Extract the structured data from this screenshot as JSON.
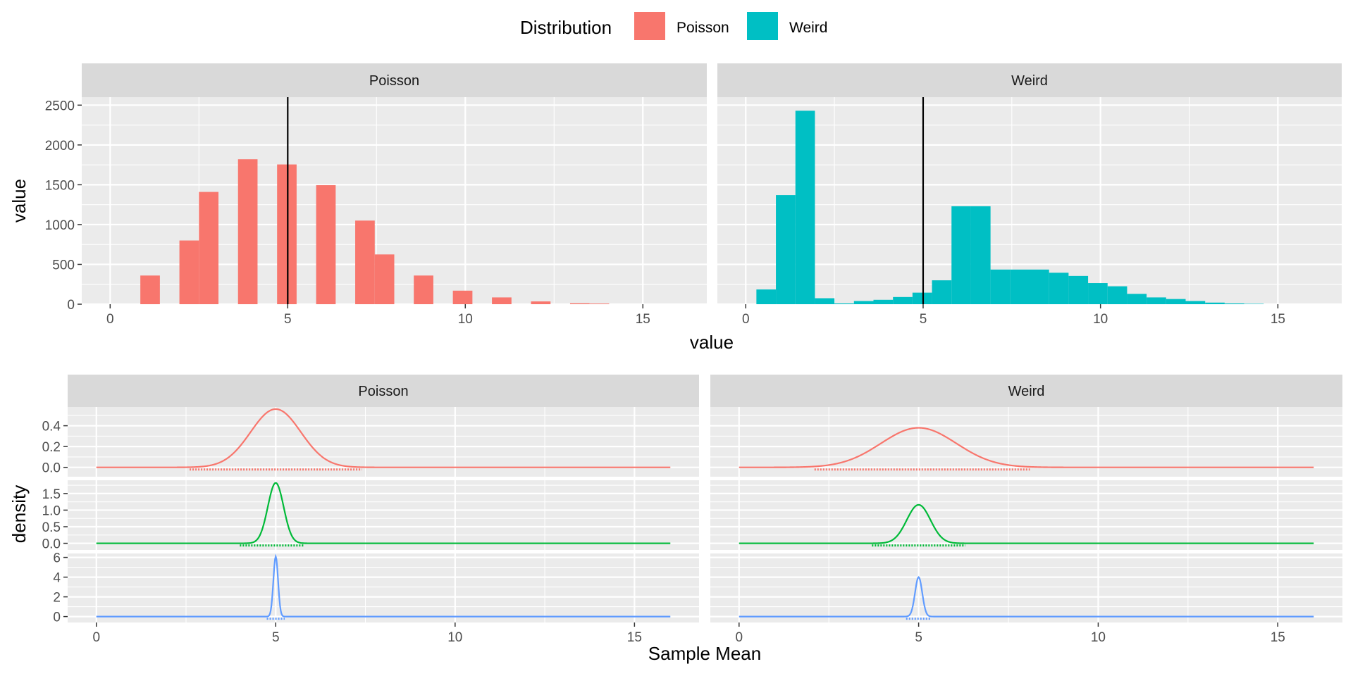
{
  "legend": {
    "title": "Distribution",
    "items": [
      {
        "label": "Poisson",
        "color": "#F8766D"
      },
      {
        "label": "Weird",
        "color": "#00BFC4"
      }
    ]
  },
  "colors": {
    "panel_bg": "#EBEBEB",
    "grid": "#FFFFFF",
    "strip_bg": "#D9D9D9",
    "mean_line": "#000000",
    "density_colors": [
      "#F8766D",
      "#00BA38",
      "#619CFF"
    ]
  },
  "chart_data": [
    {
      "type": "bar",
      "subtype": "histogram",
      "xlabel": "value",
      "ylabel": "value",
      "xlim": [
        -0.8,
        16.8
      ],
      "ylim": [
        0,
        2600
      ],
      "x_ticks": [
        0,
        5,
        10,
        15
      ],
      "y_ticks": [
        0,
        500,
        1000,
        1500,
        2000,
        2500
      ],
      "reference_line_x": 5,
      "grid": true,
      "legend_position": "top",
      "panels": [
        {
          "strip": "Poisson",
          "series": "Poisson",
          "bars": [
            {
              "x0": 0.85,
              "x1": 1.4,
              "value": 360
            },
            {
              "x0": 1.95,
              "x1": 2.5,
              "value": 800
            },
            {
              "x0": 2.5,
              "x1": 3.05,
              "value": 1410
            },
            {
              "x0": 3.6,
              "x1": 4.15,
              "value": 1820
            },
            {
              "x0": 4.7,
              "x1": 5.25,
              "value": 1755
            },
            {
              "x0": 5.8,
              "x1": 6.35,
              "value": 1495
            },
            {
              "x0": 6.9,
              "x1": 7.45,
              "value": 1050
            },
            {
              "x0": 7.45,
              "x1": 8.0,
              "value": 625
            },
            {
              "x0": 8.55,
              "x1": 9.1,
              "value": 360
            },
            {
              "x0": 9.65,
              "x1": 10.2,
              "value": 170
            },
            {
              "x0": 10.75,
              "x1": 11.3,
              "value": 85
            },
            {
              "x0": 11.85,
              "x1": 12.4,
              "value": 35
            },
            {
              "x0": 12.95,
              "x1": 13.5,
              "value": 12
            },
            {
              "x0": 13.5,
              "x1": 14.05,
              "value": 8
            }
          ]
        },
        {
          "strip": "Weird",
          "series": "Weird",
          "bars": [
            {
              "x0": 0.3,
              "x1": 0.85,
              "value": 185
            },
            {
              "x0": 0.85,
              "x1": 1.4,
              "value": 1370
            },
            {
              "x0": 1.4,
              "x1": 1.95,
              "value": 2430
            },
            {
              "x0": 1.95,
              "x1": 2.5,
              "value": 75
            },
            {
              "x0": 2.5,
              "x1": 3.05,
              "value": 10
            },
            {
              "x0": 3.05,
              "x1": 3.6,
              "value": 40
            },
            {
              "x0": 3.6,
              "x1": 4.15,
              "value": 55
            },
            {
              "x0": 4.15,
              "x1": 4.7,
              "value": 90
            },
            {
              "x0": 4.7,
              "x1": 5.25,
              "value": 145
            },
            {
              "x0": 5.25,
              "x1": 5.8,
              "value": 300
            },
            {
              "x0": 5.8,
              "x1": 6.35,
              "value": 1230
            },
            {
              "x0": 6.35,
              "x1": 6.9,
              "value": 1230
            },
            {
              "x0": 6.9,
              "x1": 7.45,
              "value": 435
            },
            {
              "x0": 7.45,
              "x1": 8.0,
              "value": 435
            },
            {
              "x0": 8.0,
              "x1": 8.55,
              "value": 435
            },
            {
              "x0": 8.55,
              "x1": 9.1,
              "value": 395
            },
            {
              "x0": 9.1,
              "x1": 9.65,
              "value": 355
            },
            {
              "x0": 9.65,
              "x1": 10.2,
              "value": 265
            },
            {
              "x0": 10.2,
              "x1": 10.75,
              "value": 225
            },
            {
              "x0": 10.75,
              "x1": 11.3,
              "value": 130
            },
            {
              "x0": 11.3,
              "x1": 11.85,
              "value": 85
            },
            {
              "x0": 11.85,
              "x1": 12.4,
              "value": 65
            },
            {
              "x0": 12.4,
              "x1": 12.95,
              "value": 40
            },
            {
              "x0": 12.95,
              "x1": 13.5,
              "value": 20
            },
            {
              "x0": 13.5,
              "x1": 14.05,
              "value": 10
            },
            {
              "x0": 14.05,
              "x1": 14.6,
              "value": 5
            }
          ]
        }
      ]
    },
    {
      "type": "line",
      "subtype": "density",
      "xlabel": "Sample Mean",
      "ylabel": "density",
      "xlim": [
        -0.8,
        16.8
      ],
      "x_ticks": [
        0,
        5,
        10,
        15
      ],
      "columns": [
        "Poisson",
        "Weird"
      ],
      "rows": [
        {
          "ylim": [
            -0.09,
            0.58
          ],
          "y_ticks": [
            0.0,
            0.2,
            0.4
          ],
          "y_tick_labels": [
            "0.0",
            "0.2",
            "0.4"
          ],
          "curves": [
            {
              "column": "Poisson",
              "type": "normal",
              "mean": 5.0,
              "sd": 0.7,
              "peak": 0.56,
              "rug": [
                2.6,
                7.4
              ]
            },
            {
              "column": "Weird",
              "type": "normal",
              "mean": 5.0,
              "sd": 1.05,
              "peak": 0.38,
              "rug": [
                2.1,
                8.1
              ]
            }
          ]
        },
        {
          "ylim": [
            -0.2,
            1.9
          ],
          "y_ticks": [
            0.0,
            0.5,
            1.0,
            1.5
          ],
          "y_tick_labels": [
            "0.0",
            "0.5",
            "1.0",
            "1.5"
          ],
          "curves": [
            {
              "column": "Poisson",
              "type": "normal",
              "mean": 5.0,
              "sd": 0.22,
              "peak": 1.82,
              "rug": [
                4.0,
                5.8
              ]
            },
            {
              "column": "Weird",
              "type": "normal",
              "mean": 5.0,
              "sd": 0.33,
              "peak": 1.16,
              "rug": [
                3.7,
                6.3
              ]
            }
          ]
        },
        {
          "ylim": [
            -0.6,
            6.4
          ],
          "y_ticks": [
            0,
            2,
            4,
            6
          ],
          "y_tick_labels": [
            "0",
            "2",
            "4",
            "6"
          ],
          "curves": [
            {
              "column": "Poisson",
              "type": "normal",
              "mean": 5.0,
              "sd": 0.065,
              "peak": 6.1,
              "rug": [
                4.75,
                5.25
              ]
            },
            {
              "column": "Weird",
              "type": "normal",
              "mean": 5.0,
              "sd": 0.1,
              "peak": 4.0,
              "rug": [
                4.65,
                5.35
              ]
            }
          ]
        }
      ],
      "density_x_range": [
        0,
        16
      ]
    }
  ]
}
